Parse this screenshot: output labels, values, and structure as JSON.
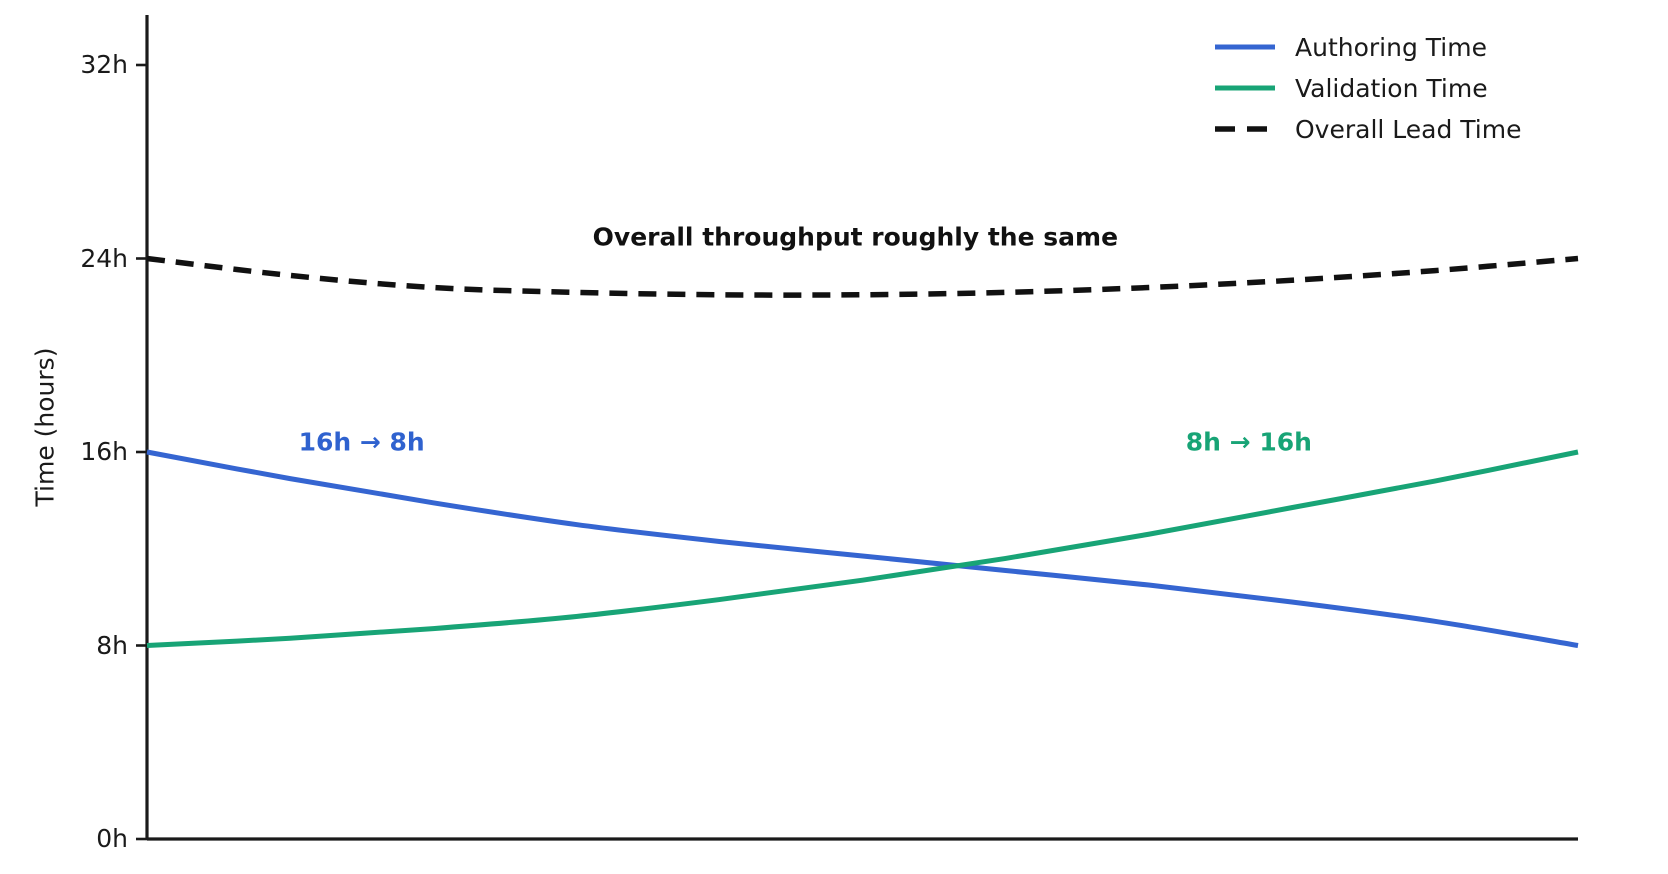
{
  "figure": {
    "background": "#ffffff",
    "axis_color": "#1a1a1a"
  },
  "chart_data": {
    "type": "line",
    "title": "",
    "xlabel": "",
    "ylabel": "Time (hours)",
    "ylim": [
      0,
      34
    ],
    "grid": false,
    "legend_position": "top-right",
    "x_percent": [
      0,
      10,
      20,
      30,
      40,
      50,
      60,
      70,
      80,
      90,
      100
    ],
    "yticks": [
      {
        "label": "0h",
        "value": 0
      },
      {
        "label": "8h",
        "value": 8
      },
      {
        "label": "16h",
        "value": 16
      },
      {
        "label": "24h",
        "value": 24
      },
      {
        "label": "32h",
        "value": 32
      }
    ],
    "series": [
      {
        "name": "Authoring Time",
        "color": "#3565d1",
        "style": "solid",
        "values": [
          16,
          14.9,
          13.9,
          13.0,
          12.3,
          11.7,
          11.1,
          10.5,
          9.8,
          9.0,
          8
        ]
      },
      {
        "name": "Validation Time",
        "color": "#18a476",
        "style": "solid",
        "values": [
          8,
          8.3,
          8.7,
          9.2,
          9.9,
          10.7,
          11.6,
          12.6,
          13.7,
          14.8,
          16
        ]
      },
      {
        "name": "Overall Lead Time",
        "color": "#111111",
        "style": "dashed",
        "values": [
          24,
          23.3,
          22.8,
          22.6,
          22.5,
          22.5,
          22.6,
          22.8,
          23.1,
          23.5,
          24
        ]
      }
    ],
    "annotations": [
      {
        "text": "Overall throughput roughly the same",
        "color": "#111111",
        "x_percent": 49.5,
        "y_hours": 24.9
      },
      {
        "text": "16h → 8h",
        "color": "#2f62cf",
        "x_percent": 15,
        "y_hours": 16.4
      },
      {
        "text": "8h → 16h",
        "color": "#18a476",
        "x_percent": 77,
        "y_hours": 16.4
      }
    ]
  }
}
